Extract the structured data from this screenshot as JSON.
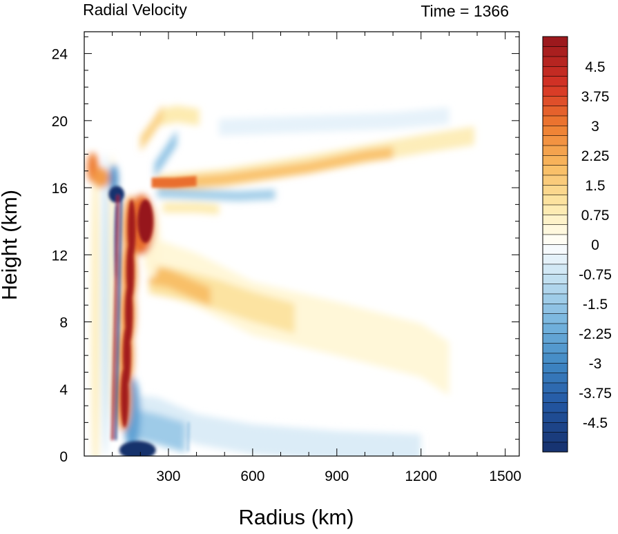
{
  "chart_data": {
    "type": "heatmap",
    "title": "Radial Velocity",
    "time_label": "Time = 1366",
    "xlabel": "Radius (km)",
    "ylabel": "Height (km)",
    "xlim": [
      0,
      1550
    ],
    "ylim": [
      0,
      25.3
    ],
    "x_ticks": [
      300,
      600,
      900,
      1200,
      1500
    ],
    "y_ticks": [
      0,
      4,
      8,
      12,
      16,
      20,
      24
    ],
    "colorbar": {
      "range": [
        -5.25,
        5.25
      ],
      "step": 0.25,
      "labels": [
        "4.5",
        "3.75",
        "3",
        "2.25",
        "1.5",
        "0.75",
        "0",
        "-0.75",
        "-1.5",
        "-2.25",
        "-3",
        "-3.75",
        "-4.5"
      ],
      "label_values": [
        4.5,
        3.75,
        3,
        2.25,
        1.5,
        0.75,
        0,
        -0.75,
        -1.5,
        -2.25,
        -3,
        -3.75,
        -4.5
      ]
    },
    "features": [
      {
        "name": "eyewall outflow core",
        "x": 215,
        "y": 14.2,
        "value": 5.5
      },
      {
        "name": "eyewall mid-level outflow",
        "x": 150,
        "y": 9.5,
        "value": 5.2
      },
      {
        "name": "boundary layer inflow",
        "x": 160,
        "y": 0.4,
        "value": -5.4
      },
      {
        "name": "upper inflow jet",
        "x": 130,
        "y": 15.6,
        "value": -5
      },
      {
        "name": "upper outflow layer",
        "x": 700,
        "y": 17.0,
        "value": 2.0
      },
      {
        "name": "mid-level outflow",
        "x": 500,
        "y": 8.5,
        "value": 1.0
      },
      {
        "name": "upper inflow",
        "x": 400,
        "y": 15.6,
        "value": -1.2
      },
      {
        "name": "tropopause inflow",
        "x": 750,
        "y": 19.8,
        "value": -0.4
      }
    ]
  }
}
